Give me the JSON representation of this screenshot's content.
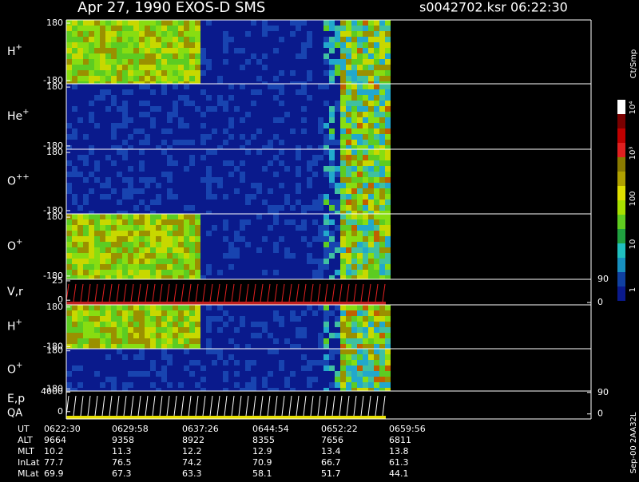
{
  "header": {
    "title": "Apr 27, 1990   EXOS-D SMS",
    "file": "s0042702.ksr  06:22:30"
  },
  "panels": [
    {
      "label": {
        "base": "H",
        "sup": "+"
      },
      "ylim": [
        -200,
        200
      ],
      "yticks": [
        180,
        -180
      ]
    },
    {
      "label": {
        "base": "He",
        "sup": "+"
      },
      "ylim": [
        -200,
        200
      ],
      "yticks": [
        180,
        -180
      ]
    },
    {
      "label": {
        "base": "O",
        "sup": "++"
      },
      "ylim": [
        -200,
        200
      ],
      "yticks": [
        180,
        -180
      ]
    },
    {
      "label": {
        "base": "O",
        "sup": "+"
      },
      "ylim": [
        -200,
        200
      ],
      "yticks": [
        180,
        -180
      ]
    },
    {
      "label": {
        "base": "V,r"
      },
      "ylim": [
        -6,
        27
      ],
      "yticks": [
        25,
        0
      ],
      "y2lim": [
        -9,
        90
      ],
      "y2ticks": [
        90,
        0
      ]
    },
    {
      "label": {
        "base": "H",
        "sup": "+"
      },
      "ylim": [
        -200,
        200
      ],
      "yticks": [
        180,
        -180
      ]
    },
    {
      "label": {
        "base": "O",
        "sup": "+"
      },
      "ylim": [
        -200,
        200
      ],
      "yticks": [
        180,
        -180
      ]
    },
    {
      "label": {
        "base": "E,p",
        "second": "QA"
      },
      "ylim": [
        -1500,
        4200
      ],
      "yticks": [
        4000,
        0
      ],
      "y2lim": [
        -21,
        96
      ],
      "y2ticks": [
        90,
        0
      ]
    }
  ],
  "colorbar": {
    "unit": "Ct/Smp",
    "ticks": [
      "10⁴",
      "10³",
      "100",
      "10",
      "1"
    ]
  },
  "footer": "Sep-00 2AA32L",
  "table": {
    "rows": [
      [
        "UT",
        "0622:30",
        "0629:58",
        "0637:26",
        "0644:54",
        "0652:22",
        "0659:56"
      ],
      [
        "ALT",
        "9664",
        "9358",
        "8922",
        "8355",
        "7656",
        "6811"
      ],
      [
        "MLT",
        "10.2",
        "11.3",
        "12.2",
        "12.9",
        "13.4",
        "13.8"
      ],
      [
        "InLat",
        "77.7",
        "76.5",
        "74.2",
        "70.9",
        "66.7",
        "61.3"
      ],
      [
        "MLat",
        "69.9",
        "67.3",
        "63.3",
        "58.1",
        "51.7",
        "44.1"
      ]
    ]
  }
}
